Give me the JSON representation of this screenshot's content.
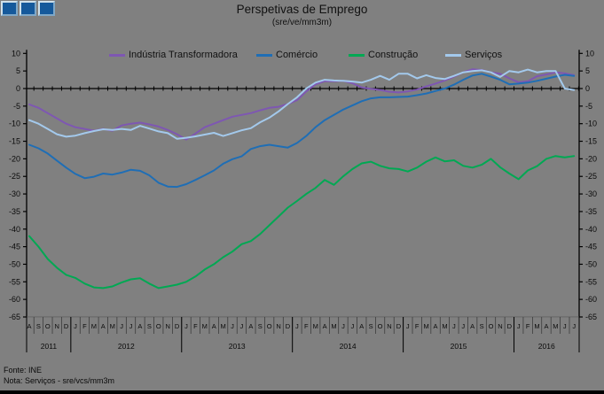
{
  "header": {
    "title": "Perspetivas de Emprego",
    "subtitle": "(sre/ve/mm3m)"
  },
  "logo": {
    "description": "three-blue-squares",
    "square_color": "#15599B"
  },
  "footer": {
    "source": "Fonte: INE",
    "note": "Nota: Serviços - sre/vcs/mm3m"
  },
  "chart_data": {
    "type": "line",
    "title": "Perspetivas de Emprego",
    "subtitle": "(sre/ve/mm3m)",
    "ylim": [
      -65,
      10
    ],
    "ytick_step": 5,
    "grid": false,
    "legend_position": "top",
    "axis_labels_both_sides": true,
    "background_color": "#808080",
    "x_labels": [
      "A",
      "S",
      "O",
      "N",
      "D",
      "J",
      "F",
      "M",
      "A",
      "M",
      "J",
      "J",
      "A",
      "S",
      "O",
      "N",
      "D",
      "J",
      "F",
      "M",
      "A",
      "M",
      "J",
      "J",
      "A",
      "S",
      "O",
      "N",
      "D",
      "J",
      "F",
      "M",
      "A",
      "M",
      "J",
      "J",
      "A",
      "S",
      "O",
      "N",
      "D",
      "J",
      "F",
      "M",
      "A",
      "M",
      "J",
      "J",
      "A",
      "S",
      "O",
      "N",
      "D",
      "J",
      "F",
      "M",
      "A",
      "M",
      "J",
      "J"
    ],
    "year_groups": [
      {
        "year": "2011",
        "months": 5
      },
      {
        "year": "2012",
        "months": 12
      },
      {
        "year": "2013",
        "months": 12
      },
      {
        "year": "2014",
        "months": 12
      },
      {
        "year": "2015",
        "months": 12
      },
      {
        "year": "2016",
        "months": 7
      }
    ],
    "series": [
      {
        "name": "Indústria Transformadora",
        "color": "#7E57B2",
        "values": [
          -4.5,
          -5.5,
          -7,
          -8.5,
          -10,
          -11,
          -11.5,
          -12,
          -11.5,
          -12,
          -10.5,
          -10,
          -9.7,
          -10.2,
          -10.8,
          -11.8,
          -13,
          -14.5,
          -12.8,
          -11,
          -10,
          -9,
          -8,
          -7.5,
          -7,
          -6.2,
          -5.5,
          -5.2,
          -4.4,
          -3.3,
          -0.8,
          1.2,
          2.1,
          2.1,
          2.2,
          1.5,
          0.3,
          -0.1,
          -0.4,
          -0.9,
          -1.1,
          -0.8,
          -0.3,
          0.6,
          1.4,
          2.3,
          3.4,
          4.6,
          5.5,
          5.3,
          4.6,
          4.2,
          2.9,
          1.8,
          2.1,
          3.5,
          4,
          4.6,
          4.3,
          3.8
        ]
      },
      {
        "name": "Comércio",
        "color": "#1F6EB5",
        "values": [
          -16,
          -17,
          -18.5,
          -20.5,
          -22.5,
          -24.3,
          -25.5,
          -25.1,
          -24.2,
          -24.5,
          -23.9,
          -23.1,
          -23.4,
          -24.7,
          -26.8,
          -27.9,
          -28,
          -27.2,
          -26,
          -24.7,
          -23.3,
          -21.4,
          -20.1,
          -19.3,
          -17.2,
          -16.4,
          -16,
          -16.4,
          -16.8,
          -15.5,
          -13.5,
          -11,
          -9,
          -7.5,
          -6,
          -4.8,
          -3.6,
          -2.8,
          -2.5,
          -2.5,
          -2.4,
          -2.3,
          -1.9,
          -1.4,
          -0.7,
          0,
          1.1,
          2.5,
          3.7,
          4.2,
          3.4,
          2.5,
          1.2,
          1.4,
          1.7,
          2.2,
          2.8,
          3.4,
          3.9,
          3.6
        ]
      },
      {
        "name": "Construção",
        "color": "#00A853",
        "values": [
          -42,
          -45,
          -48.5,
          -51,
          -53,
          -53.9,
          -55.5,
          -56.6,
          -56.8,
          -56.3,
          -55.2,
          -54.3,
          -54,
          -55.5,
          -56.8,
          -56.3,
          -55.8,
          -55,
          -53.5,
          -51.5,
          -50,
          -48,
          -46.4,
          -44.3,
          -43.4,
          -41.4,
          -38.9,
          -36.4,
          -33.9,
          -32,
          -30,
          -28.3,
          -26,
          -27.4,
          -25,
          -22.9,
          -21.3,
          -20.8,
          -22,
          -22.7,
          -22.9,
          -23.6,
          -22.5,
          -20.8,
          -19.6,
          -20.7,
          -20.4,
          -22,
          -22.5,
          -21.7,
          -20,
          -22.4,
          -24.2,
          -25.8,
          -23.3,
          -22.1,
          -20,
          -19.2,
          -19.6,
          -19.2
        ]
      },
      {
        "name": "Serviços",
        "color": "#A3C9EC",
        "values": [
          -9,
          -10,
          -11.5,
          -13,
          -13.7,
          -13.4,
          -12.7,
          -12.1,
          -11.6,
          -11.8,
          -11.5,
          -11.8,
          -10.6,
          -11.4,
          -12.2,
          -12.7,
          -14.3,
          -14,
          -13.6,
          -13.1,
          -12.6,
          -13.5,
          -12.7,
          -11.9,
          -11.3,
          -9.6,
          -8.3,
          -6.5,
          -4.4,
          -2.5,
          0,
          1.7,
          2.5,
          2.3,
          2.2,
          2,
          1.7,
          2.5,
          3.6,
          2.5,
          4.2,
          4.2,
          2.9,
          3.8,
          3,
          2.7,
          3.6,
          4.6,
          5,
          5.2,
          4.6,
          3.3,
          5,
          4.6,
          5.4,
          4.6,
          5,
          5,
          0,
          -0.4
        ]
      }
    ]
  }
}
